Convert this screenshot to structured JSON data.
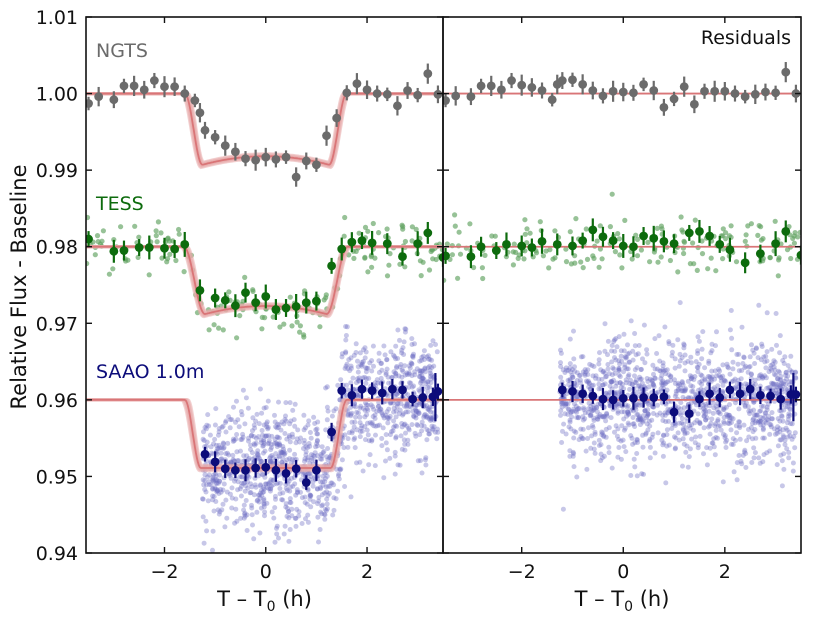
{
  "chart_data": {
    "type": "scatter",
    "ylabel": "Relative Flux - Baseline",
    "ylim": [
      0.94,
      1.01
    ],
    "yticks": [
      0.94,
      0.95,
      0.96,
      0.97,
      0.98,
      0.99,
      1.0,
      1.01
    ],
    "ytick_labels": [
      "0.94",
      "0.95",
      "0.96",
      "0.97",
      "0.98",
      "0.99",
      "1.00",
      "1.01"
    ],
    "panels": [
      {
        "name": "light-curves",
        "xlabel_main": "T – T",
        "xlabel_sub": "0",
        "xlabel_tail": " (h)",
        "xlim": [
          -3.55,
          3.5
        ],
        "xticks": [
          -2,
          0,
          2
        ],
        "xtick_labels": [
          "−2",
          "0",
          "2"
        ],
        "title": ""
      },
      {
        "name": "residuals",
        "xlabel_main": "T – T",
        "xlabel_sub": "0",
        "xlabel_tail": " (h)",
        "xlim": [
          -3.55,
          3.5
        ],
        "xticks": [
          -2,
          0,
          2
        ],
        "xtick_labels": [
          "−2",
          "0",
          "2"
        ],
        "title": "Residuals"
      }
    ],
    "series": [
      {
        "name": "NGTS",
        "color": "#6b6b6b",
        "baseline": 1.0,
        "depth": 0.0093,
        "model_color": "#d97577",
        "binned_x": [
          -3.5,
          -3.3,
          -3.0,
          -2.8,
          -2.6,
          -2.4,
          -2.2,
          -2.0,
          -1.8,
          -1.6,
          -1.4,
          -1.3,
          -1.2,
          -1.0,
          -0.8,
          -0.6,
          -0.4,
          -0.2,
          0.0,
          0.2,
          0.4,
          0.6,
          0.8,
          1.0,
          1.2,
          1.4,
          1.6,
          1.8,
          2.0,
          2.2,
          2.4,
          2.6,
          2.8,
          3.0,
          3.2,
          3.4
        ],
        "binned_y": [
          0.9987,
          0.9996,
          0.9992,
          1.001,
          1.001,
          1.0005,
          1.0017,
          1.0009,
          1.0009,
          1.0,
          0.9991,
          0.9975,
          0.9952,
          0.9943,
          0.9932,
          0.9924,
          0.9915,
          0.9913,
          0.9917,
          0.9914,
          0.9917,
          0.9891,
          0.9912,
          0.9907,
          0.9945,
          0.9968,
          1.0001,
          1.0013,
          1.0005,
          1.0,
          0.9999,
          0.9984,
          1.0004,
          0.9998,
          1.0026,
          0.9999
        ],
        "residual_y": [
          -0.0009,
          -0.0003,
          -0.0004,
          0.001,
          0.001,
          0.0005,
          0.0017,
          0.0011,
          0.0008,
          0.0004,
          -0.0008,
          0.0012,
          0.0017,
          0.0018,
          0.0012,
          0.0004,
          -0.0003,
          0.0003,
          0.0002,
          0.0001,
          0.0012,
          0.0004,
          -0.0018,
          -0.0007,
          0.0009,
          -0.0014,
          0.0003,
          0.0003,
          0.0003,
          0.0,
          -0.0004,
          -0.0001,
          0.0002,
          0.0001,
          0.0028,
          -0.0
        ]
      },
      {
        "name": "TESS",
        "color": "#0d6b0d",
        "raw_color": "#5fa25f",
        "baseline": 0.98,
        "depth": 0.0088,
        "model_color": "#d97577",
        "binned_x": [
          -3.5,
          -3.0,
          -2.8,
          -2.5,
          -2.3,
          -2.0,
          -1.8,
          -1.6,
          -1.3,
          -1.0,
          -0.8,
          -0.6,
          -0.4,
          -0.2,
          0.0,
          0.2,
          0.4,
          0.6,
          0.8,
          1.0,
          1.3,
          1.5,
          1.7,
          1.9,
          2.1,
          2.4,
          2.7,
          3.0,
          3.2,
          3.5
        ],
        "binned_y": [
          0.981,
          0.9794,
          0.9795,
          0.9799,
          0.9799,
          0.9798,
          0.9797,
          0.9803,
          0.9743,
          0.9733,
          0.973,
          0.9723,
          0.974,
          0.9727,
          0.9735,
          0.9718,
          0.972,
          0.9722,
          0.9727,
          0.9729,
          0.9775,
          0.9797,
          0.9806,
          0.9808,
          0.9805,
          0.9804,
          0.9787,
          0.9804,
          0.9818,
          0.9786
        ],
        "residual_y": [
          -0.0012,
          -0.0013,
          -0.0,
          -0.0005,
          0.0003,
          0.0001,
          -0.0001,
          0.0007,
          0.0003,
          0.0001,
          0.0008,
          0.0022,
          0.0013,
          0.0008,
          0.0001,
          0.0,
          0.0014,
          0.0011,
          0.0007,
          0.0004,
          0.0018,
          0.002,
          0.0014,
          0.0003,
          -0.0004,
          -0.0021,
          -0.0009,
          0.0004,
          0.002,
          -0.0011
        ]
      },
      {
        "name": "SAAO 1.0m",
        "color": "#0c0c7a",
        "raw_color": "#6c6cc2",
        "baseline": 0.96,
        "depth": 0.0089,
        "model_color": "#d97577",
        "binned_x": [
          -1.2,
          -1.0,
          -0.8,
          -0.6,
          -0.4,
          -0.2,
          0.0,
          0.2,
          0.4,
          0.6,
          0.8,
          1.0,
          1.3,
          1.5,
          1.7,
          1.9,
          2.1,
          2.3,
          2.5,
          2.7,
          2.9,
          3.1,
          3.3,
          3.4
        ],
        "binned_y": [
          0.9529,
          0.9519,
          0.951,
          0.9508,
          0.9508,
          0.9511,
          0.9512,
          0.9508,
          0.9504,
          0.951,
          0.9492,
          0.9508,
          0.9558,
          0.9612,
          0.9606,
          0.9614,
          0.9612,
          0.9609,
          0.9614,
          0.9613,
          0.9601,
          0.9603,
          0.9604,
          0.9611
        ],
        "residual_y": [
          0.0013,
          0.0011,
          0.0008,
          0.0005,
          0.0001,
          0.0,
          0.0002,
          0.0002,
          0.0003,
          0.0003,
          0.0004,
          -0.0016,
          -0.0018,
          0.0001,
          0.0008,
          0.0003,
          0.0013,
          0.0008,
          0.0014,
          0.0006,
          0.0005,
          0.0001,
          0.0007,
          0.0007
        ]
      }
    ]
  }
}
